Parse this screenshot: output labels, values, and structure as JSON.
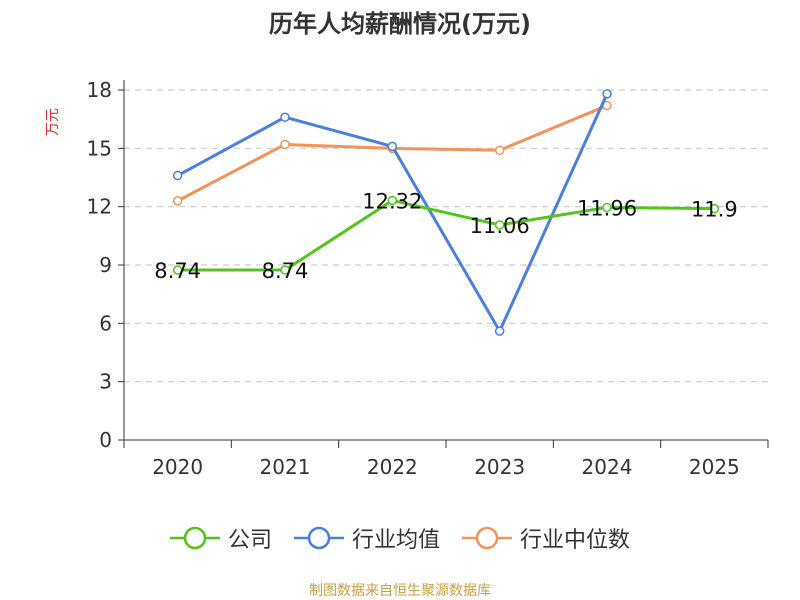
{
  "chart_data": {
    "type": "line",
    "title": "历年人均薪酬情况(万元)",
    "ylabel": "万元",
    "xlabel": "",
    "categories": [
      "2020",
      "2021",
      "2022",
      "2023",
      "2024",
      "2025"
    ],
    "ylim": [
      0,
      18
    ],
    "yticks": [
      0,
      3,
      6,
      9,
      12,
      15,
      18
    ],
    "grid": true,
    "legend_position": "bottom",
    "series": [
      {
        "name": "公司",
        "color": "#52c41a",
        "values": [
          8.74,
          8.74,
          12.32,
          11.06,
          11.96,
          11.9
        ],
        "labels": [
          "8.74",
          "8.74",
          "12.32",
          "11.06",
          "11.96",
          "11.9"
        ]
      },
      {
        "name": "行业均值",
        "color": "#4a7fdc",
        "values": [
          13.6,
          16.6,
          15.1,
          5.6,
          17.8,
          null
        ]
      },
      {
        "name": "行业中位数",
        "color": "#f4925a",
        "values": [
          12.3,
          15.2,
          15.0,
          14.9,
          17.2,
          null
        ]
      }
    ]
  },
  "source": "制图数据来自恒生聚源数据库"
}
